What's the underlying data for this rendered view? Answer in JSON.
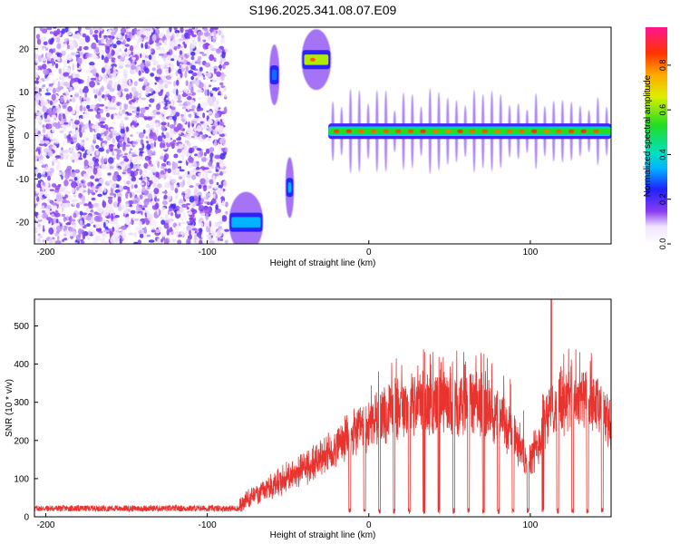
{
  "title": "S196.2025.341.08.07.E09",
  "chart_data": [
    {
      "type": "heatmap",
      "xlabel": "Height of straight line (km)",
      "ylabel": "Frequency (Hz)",
      "xlim": [
        -207,
        150
      ],
      "ylim": [
        -25,
        25
      ],
      "x_ticks": [
        -200,
        -100,
        0,
        100
      ],
      "y_ticks": [
        -20,
        -10,
        0,
        10,
        20
      ],
      "colorbar": {
        "label": "Normalized spectral amplitude",
        "range": [
          0,
          0.97
        ],
        "ticks": [
          0.0,
          0.2,
          0.4,
          0.6,
          0.8
        ]
      },
      "features": [
        {
          "x": [
            -207,
            -88
          ],
          "freq": [
            -25,
            25
          ],
          "amplitude": 0.15,
          "kind": "noise"
        },
        {
          "x": [
            -85,
            -67
          ],
          "freq": -20,
          "amplitude": 0.35
        },
        {
          "x": [
            -60,
            -57
          ],
          "freq": 14,
          "amplitude": 0.3
        },
        {
          "x": [
            -50,
            -48
          ],
          "freq": -12,
          "amplitude": 0.35
        },
        {
          "x": [
            -40,
            -25
          ],
          "freq": 17.5,
          "amplitude": 0.65
        },
        {
          "x": [
            -25,
            150
          ],
          "freq": 1,
          "amplitude": 0.75
        }
      ]
    },
    {
      "type": "line",
      "xlabel": "Height of straight line (km)",
      "ylabel": "SNR (10 * v/v)",
      "xlim": [
        -207,
        150
      ],
      "ylim": [
        0,
        570
      ],
      "x_ticks": [
        -200,
        -100,
        0,
        100
      ],
      "y_ticks": [
        0,
        100,
        200,
        300,
        400,
        500
      ],
      "color": "#e8332f",
      "series": [
        {
          "x": [
            -207,
            -190,
            -170,
            -150,
            -130,
            -110,
            -90,
            -80,
            -75,
            -70,
            -65,
            -60,
            -55,
            -50,
            -45,
            -40,
            -35,
            -30,
            -25,
            -20,
            -15,
            -10,
            -5,
            0,
            5,
            10,
            15,
            20,
            25,
            30,
            35,
            40,
            45,
            50,
            55,
            60,
            65,
            70,
            75,
            80,
            85,
            90,
            95,
            100,
            105,
            110,
            115,
            120,
            125,
            130,
            135,
            140,
            145,
            150
          ],
          "y": [
            20,
            22,
            21,
            23,
            22,
            24,
            25,
            30,
            50,
            65,
            80,
            90,
            100,
            115,
            125,
            140,
            150,
            165,
            180,
            200,
            215,
            230,
            245,
            260,
            275,
            290,
            300,
            310,
            315,
            320,
            320,
            318,
            322,
            320,
            318,
            320,
            318,
            315,
            300,
            285,
            265,
            230,
            185,
            170,
            205,
            290,
            310,
            325,
            330,
            335,
            325,
            315,
            290,
            260
          ]
        }
      ]
    }
  ]
}
